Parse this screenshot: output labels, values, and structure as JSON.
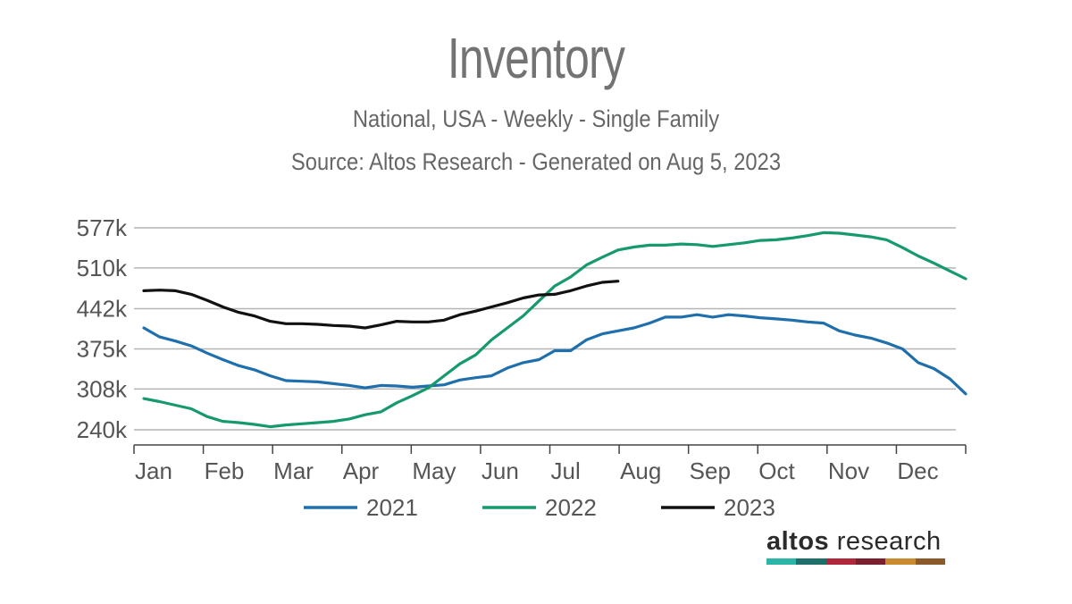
{
  "chart_data": {
    "type": "line",
    "title": "Inventory",
    "subtitle": "National, USA - Weekly - Single Family",
    "source": "Source: Altos Research - Generated on Aug 5, 2023",
    "x_tick_labels": [
      "Jan",
      "Feb",
      "Mar",
      "Apr",
      "May",
      "Jun",
      "Jul",
      "Aug",
      "Sep",
      "Oct",
      "Nov",
      "Dec"
    ],
    "y_tick_labels": [
      "577k",
      "510k",
      "442k",
      "375k",
      "308k",
      "240k"
    ],
    "y_tick_values": [
      577000,
      510000,
      442000,
      375000,
      308000,
      240000
    ],
    "ylim": [
      225000,
      585000
    ],
    "xlim": [
      0,
      52
    ],
    "x_unit": "week of year",
    "grid": true,
    "legend_position": "bottom",
    "series": [
      {
        "name": "2021",
        "color": "#1f6fad",
        "x": [
          0,
          1,
          2,
          3,
          4,
          5,
          6,
          7,
          8,
          9,
          10,
          11,
          12,
          13,
          14,
          15,
          16,
          17,
          18,
          19,
          20,
          21,
          22,
          23,
          24,
          25,
          26,
          27,
          28,
          29,
          30,
          31,
          32,
          33,
          34,
          35,
          36,
          37,
          38,
          39,
          40,
          41,
          42,
          43,
          44,
          45,
          46,
          47,
          48,
          49,
          50,
          51,
          52
        ],
        "values": [
          410000,
          395000,
          388000,
          380000,
          368000,
          357000,
          347000,
          340000,
          330000,
          322000,
          321000,
          320000,
          317000,
          314000,
          310000,
          314000,
          313000,
          311000,
          313000,
          315000,
          323000,
          327000,
          330000,
          343000,
          352000,
          357000,
          372000,
          372000,
          390000,
          400000,
          405000,
          410000,
          418000,
          428000,
          428000,
          432000,
          428000,
          432000,
          430000,
          427000,
          425000,
          423000,
          420000,
          418000,
          405000,
          398000,
          393000,
          385000,
          375000,
          352000,
          342000,
          325000,
          300000
        ]
      },
      {
        "name": "2022",
        "color": "#16996c",
        "x": [
          0,
          1,
          2,
          3,
          4,
          5,
          6,
          7,
          8,
          9,
          10,
          11,
          12,
          13,
          14,
          15,
          16,
          17,
          18,
          19,
          20,
          21,
          22,
          23,
          24,
          25,
          26,
          27,
          28,
          29,
          30,
          31,
          32,
          33,
          34,
          35,
          36,
          37,
          38,
          39,
          40,
          41,
          42,
          43,
          44,
          45,
          46,
          47,
          48,
          49,
          50,
          51,
          52
        ],
        "values": [
          292000,
          287000,
          281000,
          275000,
          262000,
          254000,
          252000,
          249000,
          245000,
          248000,
          250000,
          252000,
          254000,
          258000,
          265000,
          270000,
          285000,
          297000,
          310000,
          330000,
          350000,
          365000,
          390000,
          410000,
          430000,
          455000,
          480000,
          495000,
          515000,
          528000,
          540000,
          545000,
          548000,
          548000,
          550000,
          549000,
          546000,
          549000,
          552000,
          556000,
          557000,
          560000,
          564000,
          569000,
          568000,
          565000,
          562000,
          557000,
          544000,
          530000,
          518000,
          505000,
          492000
        ]
      },
      {
        "name": "2023",
        "color": "#111111",
        "x": [
          0,
          1,
          2,
          3,
          4,
          5,
          6,
          7,
          8,
          9,
          10,
          11,
          12,
          13,
          14,
          15,
          16,
          17,
          18,
          19,
          20,
          21,
          22,
          23,
          24,
          25,
          26,
          27,
          28,
          29,
          30
        ],
        "values": [
          472000,
          473000,
          472000,
          466000,
          456000,
          445000,
          436000,
          430000,
          421000,
          417000,
          417000,
          416000,
          414000,
          413000,
          410000,
          415000,
          421000,
          420000,
          420000,
          423000,
          432000,
          438000,
          445000,
          452000,
          460000,
          465000,
          466000,
          472000,
          480000,
          486000,
          488000
        ]
      }
    ]
  },
  "brand": {
    "part1": "altos",
    "part2": " research",
    "bar_colors": [
      "#2bb5a7",
      "#1f6f6b",
      "#b0263b",
      "#7a1f2e",
      "#c98a2e",
      "#8a5a2a"
    ]
  }
}
